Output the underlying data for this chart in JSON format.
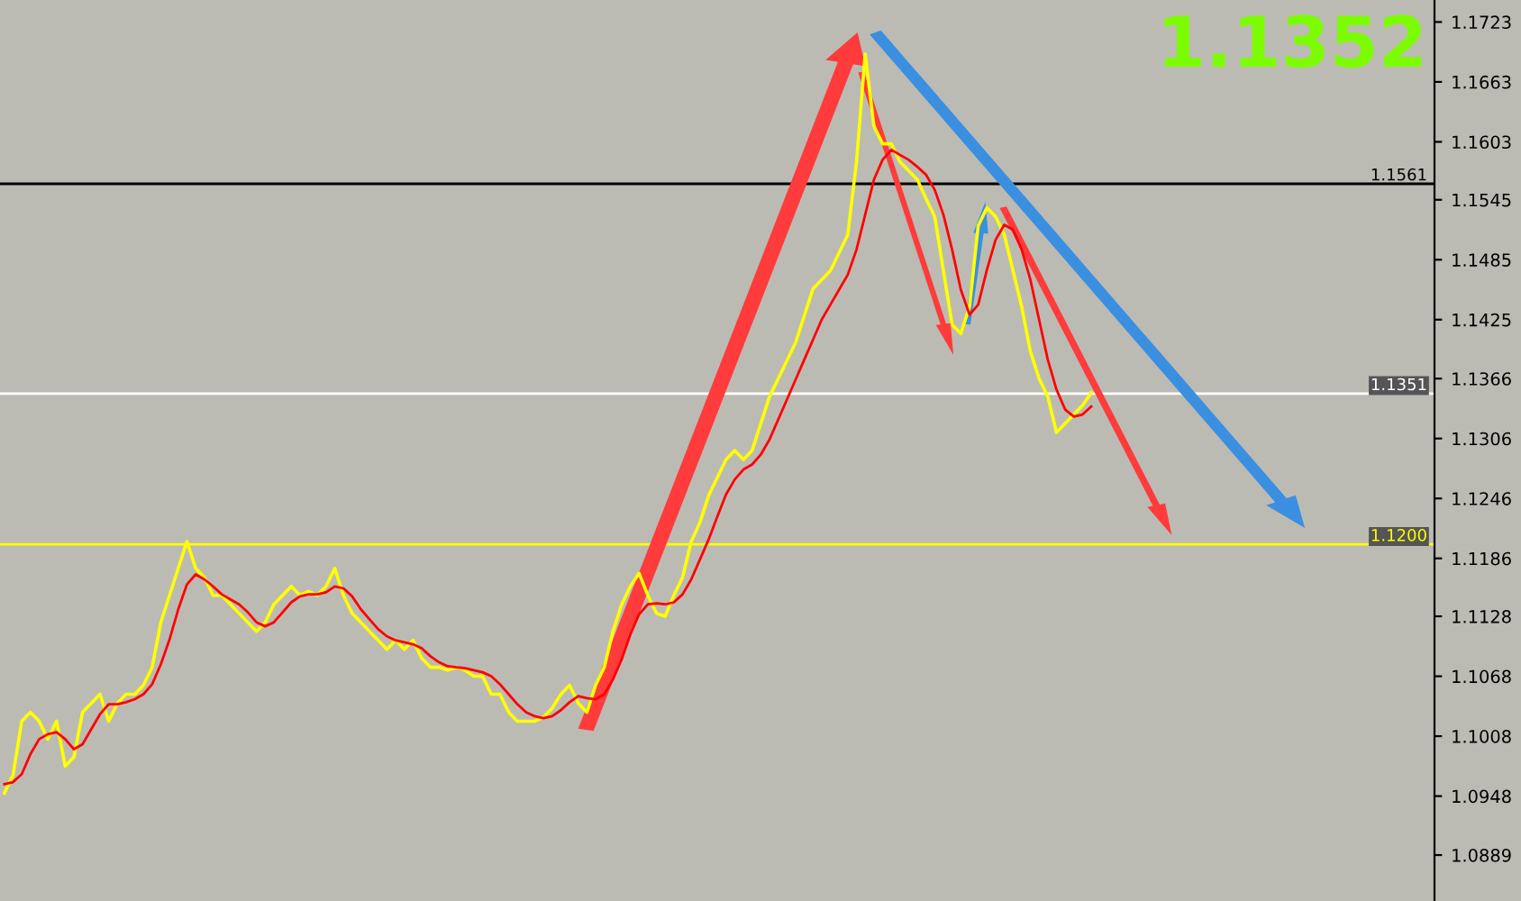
{
  "chart_data": {
    "type": "line",
    "title": "1.1352",
    "categories": [
      null,
      null,
      null,
      null,
      null,
      null,
      null,
      null,
      null,
      null,
      null,
      null,
      null,
      null,
      null,
      null,
      null,
      null,
      null,
      null,
      null,
      null,
      null,
      null,
      null,
      null,
      null,
      null,
      null,
      null,
      null,
      null,
      null,
      null,
      null,
      null,
      null,
      null,
      null,
      null,
      null,
      null,
      null,
      null,
      null,
      null,
      null,
      null,
      null,
      null,
      null,
      null,
      null,
      null,
      null,
      null,
      null,
      null,
      null,
      null,
      null,
      null,
      null,
      null,
      null,
      null,
      null,
      null,
      null,
      null,
      null,
      null,
      null,
      null,
      null,
      null,
      null,
      null,
      null,
      null,
      null,
      null,
      null,
      null,
      null,
      null,
      null,
      null,
      null,
      null,
      null,
      null,
      null,
      null,
      null,
      null,
      null,
      null,
      null,
      null,
      null,
      null,
      null,
      null,
      null,
      null,
      null,
      null,
      null,
      null,
      null,
      null,
      null,
      null,
      null,
      null,
      null,
      null,
      null,
      null,
      null,
      null,
      null,
      null,
      null,
      null
    ],
    "series": [
      {
        "color": "#ffff00",
        "values": [
          1.0951,
          1.0969,
          1.1023,
          1.1032,
          1.1023,
          1.1005,
          1.1023,
          1.0978,
          1.0987,
          1.1032,
          1.1041,
          1.105,
          1.1023,
          1.1041,
          1.105,
          1.105,
          1.1059,
          1.1077,
          1.1122,
          1.1149,
          1.1176,
          1.1203,
          1.1176,
          1.1167,
          1.1149,
          1.1149,
          1.114,
          1.1131,
          1.1122,
          1.1113,
          1.1122,
          1.114,
          1.1149,
          1.1158,
          1.1149,
          1.1153,
          1.1149,
          1.1158,
          1.1176,
          1.1149,
          1.1131,
          1.1122,
          1.1113,
          1.1104,
          1.1095,
          1.1104,
          1.1095,
          1.1104,
          1.1086,
          1.1077,
          1.1077,
          1.1074,
          1.1077,
          1.1074,
          1.1068,
          1.1068,
          1.105,
          1.105,
          1.1032,
          1.1023,
          1.1023,
          1.1023,
          1.1027,
          1.1036,
          1.105,
          1.1059,
          1.1041,
          1.1032,
          1.1059,
          1.1077,
          1.1113,
          1.114,
          1.1158,
          1.1171,
          1.1149,
          1.1131,
          1.1128,
          1.1149,
          1.1167,
          1.1203,
          1.1222,
          1.1249,
          1.1267,
          1.1285,
          1.1294,
          1.1285,
          1.1294,
          1.1321,
          1.1348,
          1.1366,
          1.1384,
          1.1402,
          1.1429,
          1.1456,
          1.1465,
          1.1474,
          1.1492,
          1.151,
          1.1583,
          1.1691,
          1.1619,
          1.1601,
          1.1601,
          1.1583,
          1.1574,
          1.1565,
          1.1546,
          1.1528,
          1.1474,
          1.142,
          1.1411,
          1.1438,
          1.1519,
          1.1537,
          1.1528,
          1.151,
          1.1474,
          1.1438,
          1.1393,
          1.1366,
          1.1348,
          1.1312,
          1.1321,
          1.133,
          1.1339,
          1.1352
        ]
      },
      {
        "color": "#ff0000",
        "values": [
          1.096,
          1.0962,
          1.097,
          1.099,
          1.1005,
          1.101,
          1.1012,
          1.1005,
          1.0995,
          1.1,
          1.1015,
          1.103,
          1.104,
          1.104,
          1.1042,
          1.1045,
          1.105,
          1.106,
          1.108,
          1.1105,
          1.1135,
          1.116,
          1.117,
          1.1165,
          1.1158,
          1.115,
          1.1145,
          1.114,
          1.1132,
          1.1122,
          1.1118,
          1.1122,
          1.1132,
          1.1142,
          1.1148,
          1.115,
          1.115,
          1.1152,
          1.1158,
          1.1156,
          1.1148,
          1.1135,
          1.1125,
          1.1115,
          1.1108,
          1.1104,
          1.1102,
          1.11,
          1.1096,
          1.1088,
          1.1082,
          1.1078,
          1.1077,
          1.1076,
          1.1074,
          1.1072,
          1.1068,
          1.106,
          1.105,
          1.104,
          1.1032,
          1.1028,
          1.1026,
          1.1028,
          1.1034,
          1.1042,
          1.1048,
          1.1046,
          1.1045,
          1.105,
          1.1065,
          1.1085,
          1.111,
          1.113,
          1.114,
          1.1141,
          1.114,
          1.1142,
          1.115,
          1.1165,
          1.1185,
          1.1205,
          1.1228,
          1.125,
          1.1265,
          1.1275,
          1.128,
          1.129,
          1.1305,
          1.1325,
          1.1345,
          1.1365,
          1.1385,
          1.1405,
          1.1425,
          1.144,
          1.1455,
          1.147,
          1.1495,
          1.153,
          1.1565,
          1.1585,
          1.1595,
          1.159,
          1.1585,
          1.1578,
          1.157,
          1.1555,
          1.153,
          1.1495,
          1.1455,
          1.143,
          1.144,
          1.1475,
          1.1505,
          1.152,
          1.1515,
          1.1495,
          1.1465,
          1.1425,
          1.1385,
          1.1355,
          1.1335,
          1.1328,
          1.133,
          1.1338
        ]
      }
    ],
    "ylim": [
      1.0843,
      1.1745
    ],
    "yticks": [
      1.1723,
      1.1663,
      1.1603,
      1.1545,
      1.1485,
      1.1425,
      1.1366,
      1.1306,
      1.1246,
      1.1186,
      1.1128,
      1.1068,
      1.1008,
      1.0948,
      1.0889
    ],
    "ref_lines": [
      {
        "axis": "y",
        "value": 1.1561,
        "label": "1.1561",
        "color": "#000000"
      },
      {
        "axis": "y",
        "value": 1.1351,
        "label": "1.1351",
        "color": "#ffffff"
      },
      {
        "axis": "y",
        "value": 1.12,
        "label": "1.1200",
        "color": "#ffff00"
      }
    ],
    "tick_labels": "y",
    "grid": false,
    "legend": false
  }
}
